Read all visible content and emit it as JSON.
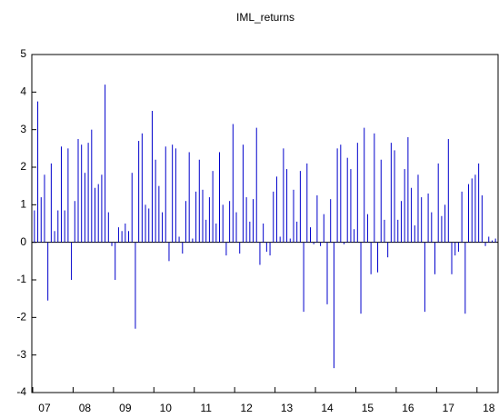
{
  "chart_data": {
    "type": "spike",
    "title": "IML_returns",
    "color": "#0000cc",
    "categories": [
      null,
      null,
      null,
      "07",
      null,
      null,
      null,
      null,
      null,
      null,
      null,
      null,
      null,
      null,
      null,
      "08",
      null,
      null,
      null,
      null,
      null,
      null,
      null,
      null,
      null,
      null,
      null,
      "09",
      null,
      null,
      null,
      null,
      null,
      null,
      null,
      null,
      null,
      null,
      null,
      "10",
      null,
      null,
      null,
      null,
      null,
      null,
      null,
      null,
      null,
      null,
      null,
      "11",
      null,
      null,
      null,
      null,
      null,
      null,
      null,
      null,
      null,
      null,
      null,
      "12",
      null,
      null,
      null,
      null,
      null,
      null,
      null,
      null,
      null,
      null,
      null,
      "13",
      null,
      null,
      null,
      null,
      null,
      null,
      null,
      null,
      null,
      null,
      null,
      "14",
      null,
      null,
      null,
      null,
      null,
      null,
      null,
      null,
      null,
      null,
      null,
      "15",
      null,
      null,
      null,
      null,
      null,
      null,
      null,
      null,
      null,
      null,
      null,
      "16",
      null,
      null,
      null,
      null,
      null,
      null,
      null,
      null,
      null,
      null,
      null,
      "17",
      null,
      null,
      null,
      null,
      null,
      null,
      null,
      null,
      null,
      null,
      null,
      "18",
      null,
      null
    ],
    "values": [
      0.85,
      3.75,
      1.2,
      1.8,
      -1.55,
      2.1,
      0.3,
      0.85,
      2.55,
      0.85,
      2.5,
      -1.0,
      1.1,
      2.75,
      2.6,
      1.85,
      2.65,
      3.0,
      1.45,
      1.55,
      1.8,
      4.2,
      0.8,
      -0.1,
      -1.0,
      0.4,
      0.3,
      0.5,
      0.3,
      1.85,
      -2.3,
      2.7,
      2.9,
      1.0,
      0.9,
      3.5,
      2.2,
      1.5,
      0.8,
      2.55,
      -0.5,
      2.6,
      2.5,
      0.15,
      -0.3,
      1.1,
      2.4,
      0.1,
      1.35,
      2.2,
      1.4,
      0.6,
      1.2,
      1.9,
      0.5,
      2.4,
      1.0,
      -0.35,
      1.1,
      3.15,
      0.8,
      -0.3,
      2.6,
      1.2,
      0.55,
      1.15,
      3.05,
      -0.6,
      0.5,
      -0.25,
      -0.35,
      1.35,
      1.75,
      0.15,
      2.5,
      1.95,
      0.1,
      1.4,
      0.55,
      1.9,
      -1.85,
      2.1,
      0.4,
      -0.05,
      1.25,
      -0.1,
      0.75,
      -1.65,
      1.15,
      -3.35,
      2.5,
      2.6,
      -0.05,
      2.25,
      1.95,
      0.35,
      2.65,
      -1.9,
      3.05,
      0.75,
      -0.85,
      2.9,
      -0.8,
      2.2,
      0.6,
      -0.4,
      2.65,
      2.45,
      0.6,
      1.1,
      1.95,
      2.8,
      1.45,
      0.45,
      1.8,
      1.2,
      -1.85,
      1.3,
      0.8,
      -0.85,
      2.1,
      0.7,
      1.0,
      2.75,
      -0.85,
      -0.35,
      -0.25,
      1.35,
      -1.9,
      1.55,
      1.7,
      1.8,
      2.1,
      1.25,
      -0.1,
      0.15,
      0.05,
      0.1
    ],
    "ylim": [
      -4,
      5
    ],
    "yticks": [
      -4,
      -3,
      -2,
      -1,
      0,
      1,
      2,
      3,
      4,
      5
    ]
  }
}
